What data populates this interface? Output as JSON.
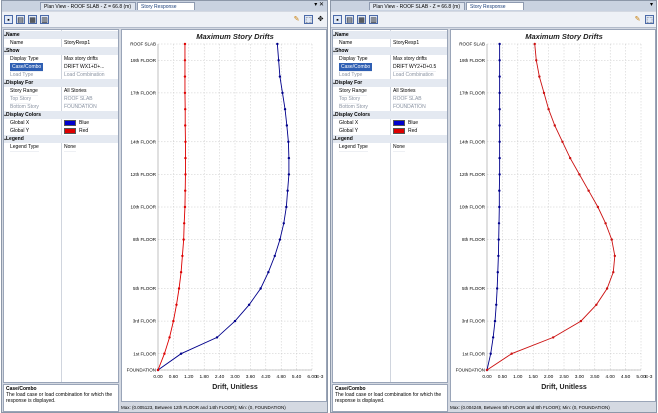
{
  "windows": [
    {
      "tabs": [
        "Plan View - ROOF SLAB - Z = 66.8 (m)",
        "Story Response"
      ],
      "win_controls": "▾ ✕",
      "grid": [
        {
          "type": "section",
          "key": "Name"
        },
        {
          "type": "item",
          "key": "Name",
          "value": "StoryResp1"
        },
        {
          "type": "section",
          "key": "Show"
        },
        {
          "type": "item",
          "key": "Display Type",
          "value": "Max story drifts"
        },
        {
          "type": "item",
          "key": "Case/Combo",
          "value": "DRIFT WX1+D+...",
          "selected": true
        },
        {
          "type": "item",
          "key": "Load Type",
          "value": "Load Combination",
          "disabled": true
        },
        {
          "type": "section",
          "key": "Display For"
        },
        {
          "type": "item",
          "key": "Story Range",
          "value": "All Stories"
        },
        {
          "type": "item",
          "key": "Top Story",
          "value": "ROOF SLAB",
          "disabled": true
        },
        {
          "type": "item",
          "key": "Bottom Story",
          "value": "FOUNDATION",
          "disabled": true
        },
        {
          "type": "section",
          "key": "Display Colors"
        },
        {
          "type": "item",
          "key": "Global X",
          "value": "Blue",
          "swatch": "#0000cc"
        },
        {
          "type": "item",
          "key": "Global Y",
          "value": "Red",
          "swatch": "#dd0000"
        },
        {
          "type": "section",
          "key": "Legend"
        },
        {
          "type": "item",
          "key": "Legend Type",
          "value": "None"
        }
      ],
      "help": {
        "title": "Case/Combo",
        "text": "The load case or load combination for which the response is displayed."
      },
      "status": "Max: (0.005123, Between 12th FLOOR and 14th FLOOR);  Min: (0, FOUNDATION)"
    },
    {
      "tabs": [
        "Plan View - ROOF SLAB - Z = 66.8 (m)",
        "Story Response"
      ],
      "win_controls": "▾",
      "grid": [
        {
          "type": "section",
          "key": "Name"
        },
        {
          "type": "item",
          "key": "Name",
          "value": "StoryResp1"
        },
        {
          "type": "section",
          "key": "Show"
        },
        {
          "type": "item",
          "key": "Display Type",
          "value": "Max story drifts"
        },
        {
          "type": "item",
          "key": "Case/Combo",
          "value": "DRIFT WY2+D+0.5",
          "selected": true
        },
        {
          "type": "item",
          "key": "Load Type",
          "value": "Load Combination",
          "disabled": true
        },
        {
          "type": "section",
          "key": "Display For"
        },
        {
          "type": "item",
          "key": "Story Range",
          "value": "All Stories"
        },
        {
          "type": "item",
          "key": "Top Story",
          "value": "ROOF SLAB",
          "disabled": true
        },
        {
          "type": "item",
          "key": "Bottom Story",
          "value": "FOUNDATION",
          "disabled": true
        },
        {
          "type": "section",
          "key": "Display Colors"
        },
        {
          "type": "item",
          "key": "Global X",
          "value": "Blue",
          "swatch": "#0000cc"
        },
        {
          "type": "item",
          "key": "Global Y",
          "value": "Red",
          "swatch": "#dd0000"
        },
        {
          "type": "section",
          "key": "Legend"
        },
        {
          "type": "item",
          "key": "Legend Type",
          "value": "None"
        }
      ],
      "help": {
        "title": "Case/Combo",
        "text": "The load case or load combination for which the response is displayed."
      },
      "status": "Max: (0.004249, Between 5th FLOOR and 8th FLOOR);  Min: (0, FOUNDATION)"
    }
  ],
  "icons": [
    "save-icon",
    "display-icon",
    "table-icon",
    "options-icon",
    "pencil-icon",
    "select-icon",
    "pan-icon"
  ],
  "chart_data": [
    {
      "type": "line",
      "title": "Maximum Story Drifts",
      "xlabel": "Drift, Unitless",
      "x_unit": "E-3",
      "xlim": [
        0,
        6.0
      ],
      "xticks": [
        "0.00",
        "0.60",
        "1.20",
        "1.80",
        "2.40",
        "3.00",
        "3.60",
        "4.20",
        "4.80",
        "5.40",
        "6.00"
      ],
      "story_labels": [
        {
          "label": "ROOF SLAB",
          "story": 20
        },
        {
          "label": "19th FLOOR",
          "story": 19
        },
        {
          "label": "17th FLOOR",
          "story": 17
        },
        {
          "label": "14th FLOOR",
          "story": 14
        },
        {
          "label": "12th FLOOR",
          "story": 12
        },
        {
          "label": "10th FLOOR",
          "story": 10
        },
        {
          "label": "8th FLOOR",
          "story": 8
        },
        {
          "label": "5th FLOOR",
          "story": 5
        },
        {
          "label": "3rd FLOOR",
          "story": 3
        },
        {
          "label": "1st FLOOR",
          "story": 1
        },
        {
          "label": "FOUNDATION",
          "story": 0
        }
      ],
      "ylim": [
        0,
        20
      ],
      "grid": true,
      "series": [
        {
          "color": "#00008b",
          "stories": [
            0,
            1,
            2,
            3,
            4,
            5,
            6,
            7,
            8,
            9,
            10,
            11,
            12,
            13,
            14,
            15,
            16,
            17,
            18,
            19,
            20
          ],
          "values": [
            0,
            0.9,
            2.3,
            3.0,
            3.55,
            4.0,
            4.3,
            4.55,
            4.75,
            4.9,
            5.0,
            5.05,
            5.1,
            5.1,
            5.08,
            5.02,
            4.95,
            4.85,
            4.75,
            4.7,
            4.65
          ]
        },
        {
          "color": "#dd0000",
          "stories": [
            0,
            1,
            2,
            3,
            4,
            5,
            6,
            7,
            8,
            9,
            10,
            11,
            12,
            13,
            14,
            15,
            16,
            17,
            18,
            19,
            20
          ],
          "values": [
            0,
            0.25,
            0.45,
            0.6,
            0.72,
            0.82,
            0.9,
            0.95,
            1.0,
            1.02,
            1.05,
            1.06,
            1.07,
            1.07,
            1.07,
            1.06,
            1.06,
            1.05,
            1.05,
            1.05,
            1.05
          ]
        }
      ]
    },
    {
      "type": "line",
      "title": "Maximum Story Drifts",
      "xlabel": "Drift, Unitless",
      "x_unit": "E-3",
      "xlim": [
        0,
        5.0
      ],
      "xticks": [
        "0.00",
        "0.50",
        "1.00",
        "1.50",
        "2.00",
        "2.50",
        "3.00",
        "3.50",
        "4.00",
        "4.50",
        "5.00"
      ],
      "story_labels": [
        {
          "label": "ROOF SLAB",
          "story": 20
        },
        {
          "label": "19th FLOOR",
          "story": 19
        },
        {
          "label": "17th FLOOR",
          "story": 17
        },
        {
          "label": "14th FLOOR",
          "story": 14
        },
        {
          "label": "12th FLOOR",
          "story": 12
        },
        {
          "label": "10th FLOOR",
          "story": 10
        },
        {
          "label": "8th FLOOR",
          "story": 8
        },
        {
          "label": "5th FLOOR",
          "story": 5
        },
        {
          "label": "3rd FLOOR",
          "story": 3
        },
        {
          "label": "1st FLOOR",
          "story": 1
        },
        {
          "label": "FOUNDATION",
          "story": 0
        }
      ],
      "ylim": [
        0,
        20
      ],
      "grid": true,
      "series": [
        {
          "color": "#00008b",
          "stories": [
            0,
            1,
            2,
            3,
            4,
            5,
            6,
            7,
            8,
            9,
            10,
            11,
            12,
            13,
            14,
            15,
            16,
            17,
            18,
            19,
            20
          ],
          "values": [
            0,
            0.12,
            0.2,
            0.26,
            0.3,
            0.33,
            0.35,
            0.37,
            0.38,
            0.39,
            0.4,
            0.4,
            0.41,
            0.41,
            0.41,
            0.41,
            0.41,
            0.41,
            0.41,
            0.41,
            0.41
          ]
        },
        {
          "color": "#cc1111",
          "stories": [
            0,
            1,
            2,
            3,
            4,
            5,
            6,
            7,
            8,
            9,
            10,
            11,
            12,
            13,
            14,
            15,
            16,
            17,
            18,
            19,
            20
          ],
          "values": [
            0,
            0.8,
            2.15,
            3.05,
            3.55,
            3.9,
            4.1,
            4.15,
            4.05,
            3.85,
            3.6,
            3.3,
            3.0,
            2.7,
            2.45,
            2.2,
            2.0,
            1.85,
            1.7,
            1.6,
            1.55
          ]
        }
      ]
    }
  ]
}
